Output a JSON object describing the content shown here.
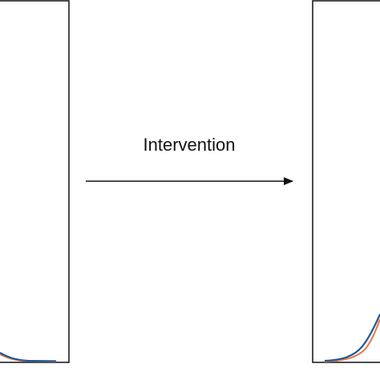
{
  "label": "Intervention"
}
